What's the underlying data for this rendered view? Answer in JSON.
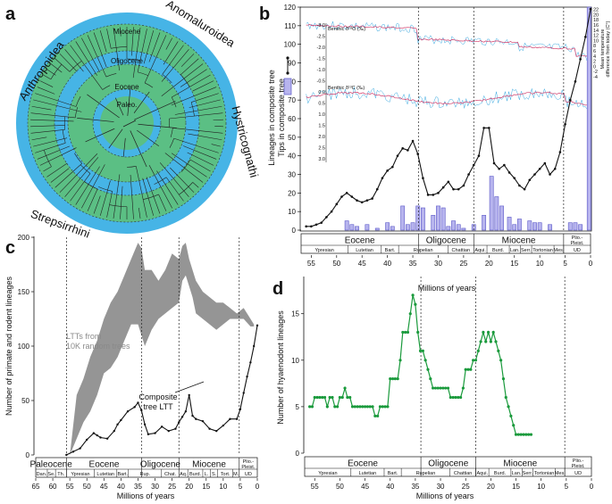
{
  "chart_data": [
    {
      "panel": "a",
      "type": "tree",
      "ring_labels": [
        "Paleo.",
        "Eocene",
        "Oligocene",
        "Miocene"
      ],
      "clades": [
        "Anthropoidea",
        "Anomaluroidea",
        "Hystricognathi",
        "Strepsirrhini"
      ],
      "colors": {
        "green": "#5bbf84",
        "blue": "#46b4e6"
      }
    },
    {
      "panel": "b",
      "type": "line",
      "xlabel": "Millions of years",
      "ylabel_left": [
        "Lineages in composite tree",
        "Tips in composite tree"
      ],
      "ylabel_right": [
        "Mean temperature",
        "difference from today (C°)"
      ],
      "xlim": [
        57,
        0
      ],
      "ylim": [
        0,
        120
      ],
      "xticks": [
        55,
        50,
        45,
        40,
        35,
        30,
        25,
        20,
        15,
        10,
        5,
        0
      ],
      "yticks": [
        0,
        10,
        20,
        30,
        40,
        50,
        60,
        70,
        80,
        90,
        100,
        110,
        120
      ],
      "right_ticks": [
        -4,
        -2,
        0,
        2,
        4,
        6,
        8,
        10,
        12,
        14,
        16,
        18,
        20,
        22
      ],
      "inset_ticks": [
        "-3.0",
        "-2.5",
        "-2.0",
        "-1.5",
        "-1.0",
        "-0.5",
        "0.0",
        "0.5",
        "1.0",
        "1.5",
        "2.0",
        "2.5",
        "3.0"
      ],
      "d18o_label": "Benthic δ¹⁸O (‰)",
      "d13c_label": "Benthic δ¹³C (‰)",
      "legend": [
        "Lineages in composite tree",
        "Tips in composite tree"
      ],
      "epochs": [
        "Eocene",
        "Oligocene",
        "Miocene",
        "Plio.-\nPleist."
      ],
      "stages": [
        "Ypresian",
        "Lutetian",
        "Bart.",
        "Rupelian",
        "Chattian",
        "Aqui.",
        "Burd.",
        "Lan.",
        "Serr.",
        "Tortonian",
        "Mes.",
        "UD"
      ],
      "boundaries": [
        33.9,
        23.0,
        5.3
      ],
      "ltt": {
        "x": [
          56,
          55,
          54,
          53,
          52,
          51,
          50,
          49,
          48,
          47,
          46,
          45,
          44,
          43,
          42,
          41,
          40,
          39,
          38,
          37,
          36,
          35,
          34,
          33,
          32,
          31,
          30,
          29,
          28,
          27,
          26,
          25,
          24,
          23,
          22,
          21,
          20,
          19,
          18,
          17,
          16,
          15,
          14,
          13,
          12,
          11,
          10,
          9,
          8,
          7,
          6,
          5,
          4,
          3,
          2,
          1,
          0
        ],
        "y": [
          2,
          2,
          3,
          4,
          7,
          10,
          14,
          18,
          20,
          18,
          16,
          15,
          16,
          17,
          22,
          28,
          32,
          34,
          40,
          44,
          43,
          48,
          41,
          28,
          19,
          19,
          20,
          23,
          26,
          22,
          22,
          24,
          30,
          35,
          40,
          55,
          55,
          36,
          33,
          35,
          31,
          28,
          24,
          22,
          27,
          30,
          33,
          36,
          30,
          33,
          42,
          57,
          70,
          80,
          92,
          104,
          119
        ]
      },
      "bars": [
        {
          "x": 48,
          "h": 5
        },
        {
          "x": 47,
          "h": 3
        },
        {
          "x": 46,
          "h": 2
        },
        {
          "x": 44,
          "h": 3
        },
        {
          "x": 42,
          "h": 1
        },
        {
          "x": 40,
          "h": 4
        },
        {
          "x": 39,
          "h": 2
        },
        {
          "x": 37,
          "h": 13
        },
        {
          "x": 36,
          "h": 3
        },
        {
          "x": 35,
          "h": 4
        },
        {
          "x": 34,
          "h": 13
        },
        {
          "x": 33,
          "h": 12
        },
        {
          "x": 31,
          "h": 8
        },
        {
          "x": 30,
          "h": 13
        },
        {
          "x": 29,
          "h": 12
        },
        {
          "x": 28,
          "h": 2
        },
        {
          "x": 27,
          "h": 5
        },
        {
          "x": 26,
          "h": 3
        },
        {
          "x": 25,
          "h": 1
        },
        {
          "x": 23,
          "h": 3
        },
        {
          "x": 21,
          "h": 8
        },
        {
          "x": 19.5,
          "h": 29
        },
        {
          "x": 18.5,
          "h": 18
        },
        {
          "x": 17.5,
          "h": 13
        },
        {
          "x": 16,
          "h": 7
        },
        {
          "x": 15,
          "h": 3
        },
        {
          "x": 14,
          "h": 6
        },
        {
          "x": 12,
          "h": 5
        },
        {
          "x": 11,
          "h": 4
        },
        {
          "x": 10,
          "h": 4
        },
        {
          "x": 8,
          "h": 3
        },
        {
          "x": 4,
          "h": 4
        },
        {
          "x": 3,
          "h": 4
        },
        {
          "x": 2,
          "h": 3
        },
        {
          "x": 0.3,
          "h": 120
        }
      ]
    },
    {
      "panel": "c",
      "type": "area",
      "xlabel": "Millions of years",
      "ylabel": "Number of primate and rodent lineages",
      "xlim": [
        65,
        0
      ],
      "ylim": [
        0,
        200
      ],
      "xticks": [
        65,
        60,
        55,
        50,
        45,
        40,
        35,
        30,
        25,
        20,
        15,
        10,
        5,
        0
      ],
      "yticks": [
        0,
        50,
        100,
        150,
        200
      ],
      "annotation_random": "LTTs from\n10K random trees",
      "annotation_composite": "Composite\ntree LTT",
      "epochs": [
        "Paleocene",
        "Eocene",
        "Oligocene",
        "Miocene",
        "Plio.-\nPleist."
      ],
      "stages": [
        "Dan.",
        "Se.",
        "Th.",
        "Ypresian",
        "Lutetian",
        "Bart.",
        "Rup.",
        "Chat.",
        "Aq.",
        "Burd.",
        "L.",
        "S.",
        "Tort.",
        "M.",
        "UD"
      ],
      "boundaries": [
        56,
        33.9,
        23.0,
        5.3
      ],
      "random_band": {
        "x": [
          55,
          53,
          51,
          49,
          47,
          45,
          43,
          41,
          39,
          37,
          35,
          34,
          33,
          31,
          29,
          27,
          25,
          23,
          22,
          21,
          20,
          19,
          18,
          16,
          14,
          12,
          10,
          8,
          6,
          4,
          2,
          1
        ],
        "low": [
          0,
          15,
          30,
          40,
          55,
          75,
          80,
          90,
          105,
          120,
          120,
          110,
          100,
          115,
          125,
          130,
          135,
          140,
          160,
          165,
          155,
          145,
          130,
          125,
          120,
          115,
          120,
          125,
          125,
          125,
          118,
          118
        ],
        "high": [
          0,
          55,
          70,
          90,
          105,
          125,
          140,
          150,
          165,
          180,
          195,
          190,
          170,
          170,
          160,
          170,
          185,
          180,
          192,
          195,
          180,
          170,
          160,
          150,
          145,
          140,
          140,
          135,
          130,
          135,
          125,
          120
        ]
      },
      "composite": {
        "x": [
          56,
          54,
          52,
          50,
          48,
          47,
          46,
          44,
          42,
          41,
          40,
          38,
          36,
          35,
          34,
          33,
          32,
          30,
          28,
          26,
          24,
          23,
          22,
          21,
          20,
          19,
          18,
          16,
          14,
          12,
          10,
          8,
          6,
          5,
          4,
          3,
          2,
          1,
          0
        ],
        "y": [
          0,
          3,
          6,
          14,
          20,
          18,
          16,
          15,
          22,
          28,
          32,
          40,
          44,
          48,
          41,
          28,
          19,
          20,
          26,
          22,
          24,
          30,
          35,
          40,
          55,
          36,
          33,
          31,
          24,
          22,
          27,
          33,
          33,
          42,
          57,
          72,
          85,
          100,
          119
        ]
      }
    },
    {
      "panel": "d",
      "type": "line",
      "xlabel": "Millions of years",
      "ylabel": "Number of hyaenodont lineages",
      "xlim": [
        57,
        0
      ],
      "ylim": [
        0,
        19
      ],
      "xticks": [
        55,
        50,
        45,
        40,
        35,
        30,
        25,
        20,
        15,
        10,
        5,
        0
      ],
      "yticks": [
        0,
        5,
        10,
        15
      ],
      "epochs": [
        "Eocene",
        "Oligocene",
        "Miocene",
        "Plio.-\nPleist."
      ],
      "stages": [
        "Ypresian",
        "Lutetian",
        "Bart.",
        "Rupelian",
        "Chattian",
        "Aqui.",
        "Burd.",
        "Lan.",
        "Serr.",
        "Tortonian",
        "Mes.",
        "UD"
      ],
      "boundaries": [
        33.9,
        23.0,
        5.3
      ],
      "color": "#1a9a3c",
      "series": {
        "x": [
          56,
          55.5,
          55,
          54.5,
          54,
          53.5,
          53,
          52.5,
          52,
          51.5,
          51,
          50.5,
          50,
          49.5,
          49,
          48.5,
          48,
          47.5,
          47,
          46.5,
          46,
          45.5,
          45,
          44.5,
          44,
          43.5,
          43,
          42.5,
          42,
          41.5,
          41,
          40.5,
          40,
          39.5,
          39,
          38.5,
          38,
          37.5,
          37,
          36.5,
          36,
          35.5,
          35,
          34.5,
          34,
          33.5,
          33,
          32.5,
          32,
          31.5,
          31,
          30.5,
          30,
          29.5,
          29,
          28.5,
          28,
          27.5,
          27,
          26.5,
          26,
          25.5,
          25,
          24.5,
          24,
          23.5,
          23,
          22.5,
          22,
          21.5,
          21,
          20.5,
          20,
          19.5,
          19,
          18.5,
          18,
          17.5,
          17,
          16.5,
          16,
          15.5,
          15,
          14.5,
          14,
          13.5,
          13,
          12.5,
          12
        ],
        "y": [
          5,
          5,
          6,
          6,
          6,
          6,
          6,
          5,
          6,
          6,
          5,
          5,
          6,
          6,
          7,
          6,
          6,
          5,
          5,
          5,
          5,
          5,
          5,
          5,
          5,
          5,
          4,
          4,
          5,
          5,
          5,
          5,
          8,
          8,
          8,
          8,
          10,
          13,
          13,
          13,
          15,
          17,
          16,
          13,
          11,
          11,
          10,
          9,
          8,
          7,
          7,
          7,
          7,
          7,
          7,
          7,
          6,
          6,
          6,
          6,
          6,
          7,
          9,
          9,
          9,
          10,
          10,
          11,
          12,
          13,
          12,
          13,
          12,
          13,
          12,
          11,
          10,
          8,
          6,
          5,
          4,
          3,
          2,
          2,
          2,
          2,
          2,
          2,
          2
        ]
      }
    }
  ]
}
